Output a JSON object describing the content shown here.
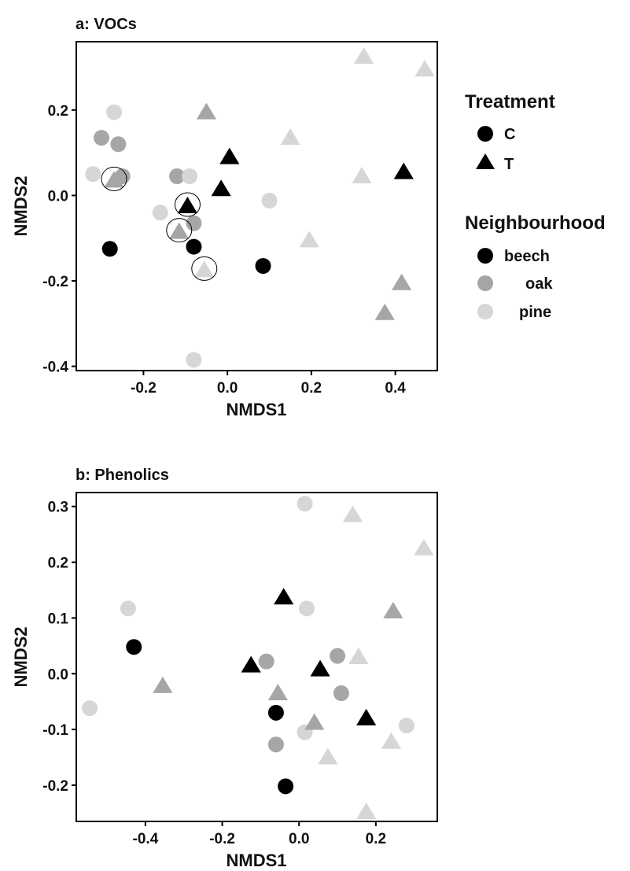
{
  "colors": {
    "beech": "#000000",
    "oak": "#a6a6a6",
    "pine": "#d6d6d6"
  },
  "legend": {
    "placement": "right of panel a",
    "treatment_title": "Treatment",
    "treatment_items": [
      {
        "label": "C",
        "shape": "circle"
      },
      {
        "label": "T",
        "shape": "triangle"
      }
    ],
    "neighbourhood_title": "Neighbourhood",
    "neighbourhood_items": [
      {
        "label": "beech",
        "color": "#000000"
      },
      {
        "label": "oak",
        "color": "#a6a6a6"
      },
      {
        "label": "pine",
        "color": "#d6d6d6"
      }
    ]
  },
  "chart_data": [
    {
      "type": "scatter",
      "title": "a: VOCs",
      "xlabel": "NMDS1",
      "ylabel": "NMDS2",
      "xlim": [
        -0.36,
        0.5
      ],
      "ylim": [
        -0.41,
        0.36
      ],
      "xticks": [
        -0.2,
        0.0,
        0.2,
        0.4
      ],
      "yticks": [
        -0.4,
        -0.2,
        0.0,
        0.2
      ],
      "xtick_labels": [
        "-0.2",
        "0.0",
        "0.2",
        "0.4"
      ],
      "ytick_labels": [
        "-0.4",
        "-0.2",
        "0.0",
        "0.2"
      ],
      "grid": false,
      "points": [
        {
          "x": -0.27,
          "y": 0.195,
          "treatment": "C",
          "neighbourhood": "pine"
        },
        {
          "x": -0.3,
          "y": 0.135,
          "treatment": "C",
          "neighbourhood": "oak"
        },
        {
          "x": -0.26,
          "y": 0.12,
          "treatment": "C",
          "neighbourhood": "oak"
        },
        {
          "x": -0.32,
          "y": 0.05,
          "treatment": "C",
          "neighbourhood": "pine"
        },
        {
          "x": -0.25,
          "y": 0.045,
          "treatment": "C",
          "neighbourhood": "oak"
        },
        {
          "x": -0.12,
          "y": 0.045,
          "treatment": "C",
          "neighbourhood": "oak"
        },
        {
          "x": -0.09,
          "y": 0.045,
          "treatment": "C",
          "neighbourhood": "pine"
        },
        {
          "x": -0.16,
          "y": -0.04,
          "treatment": "C",
          "neighbourhood": "pine"
        },
        {
          "x": -0.08,
          "y": -0.065,
          "treatment": "C",
          "neighbourhood": "oak"
        },
        {
          "x": -0.28,
          "y": -0.125,
          "treatment": "C",
          "neighbourhood": "beech"
        },
        {
          "x": -0.08,
          "y": -0.12,
          "treatment": "C",
          "neighbourhood": "beech"
        },
        {
          "x": 0.085,
          "y": -0.165,
          "treatment": "C",
          "neighbourhood": "beech"
        },
        {
          "x": 0.1,
          "y": -0.012,
          "treatment": "C",
          "neighbourhood": "pine"
        },
        {
          "x": -0.08,
          "y": -0.385,
          "treatment": "C",
          "neighbourhood": "pine"
        },
        {
          "x": -0.05,
          "y": 0.195,
          "treatment": "T",
          "neighbourhood": "oak"
        },
        {
          "x": 0.325,
          "y": 0.325,
          "treatment": "T",
          "neighbourhood": "pine"
        },
        {
          "x": 0.47,
          "y": 0.295,
          "treatment": "T",
          "neighbourhood": "pine"
        },
        {
          "x": 0.15,
          "y": 0.135,
          "treatment": "T",
          "neighbourhood": "pine"
        },
        {
          "x": 0.005,
          "y": 0.09,
          "treatment": "T",
          "neighbourhood": "beech"
        },
        {
          "x": 0.42,
          "y": 0.055,
          "treatment": "T",
          "neighbourhood": "beech"
        },
        {
          "x": 0.32,
          "y": 0.045,
          "treatment": "T",
          "neighbourhood": "pine"
        },
        {
          "x": -0.015,
          "y": 0.015,
          "treatment": "T",
          "neighbourhood": "beech"
        },
        {
          "x": -0.27,
          "y": 0.035,
          "treatment": "T",
          "neighbourhood": "oak",
          "circled": true
        },
        {
          "x": -0.095,
          "y": -0.025,
          "treatment": "T",
          "neighbourhood": "beech",
          "circled": true
        },
        {
          "x": -0.115,
          "y": -0.085,
          "treatment": "T",
          "neighbourhood": "oak",
          "circled": true
        },
        {
          "x": -0.055,
          "y": -0.175,
          "treatment": "T",
          "neighbourhood": "pine",
          "circled": true
        },
        {
          "x": 0.195,
          "y": -0.105,
          "treatment": "T",
          "neighbourhood": "pine"
        },
        {
          "x": 0.415,
          "y": -0.205,
          "treatment": "T",
          "neighbourhood": "oak"
        },
        {
          "x": 0.375,
          "y": -0.275,
          "treatment": "T",
          "neighbourhood": "oak"
        }
      ]
    },
    {
      "type": "scatter",
      "title": "b: Phenolics",
      "xlabel": "NMDS1",
      "ylabel": "NMDS2",
      "xlim": [
        -0.58,
        0.36
      ],
      "ylim": [
        -0.265,
        0.325
      ],
      "xticks": [
        -0.4,
        -0.2,
        0.0,
        0.2
      ],
      "yticks": [
        -0.2,
        -0.1,
        0.0,
        0.1,
        0.2,
        0.3
      ],
      "xtick_labels": [
        "-0.4",
        "-0.2",
        "0.0",
        "0.2"
      ],
      "ytick_labels": [
        "-0.2",
        "-0.1",
        "0.0",
        "0.1",
        "0.2",
        "0.3"
      ],
      "grid": false,
      "points": [
        {
          "x": 0.015,
          "y": 0.305,
          "treatment": "C",
          "neighbourhood": "pine"
        },
        {
          "x": -0.445,
          "y": 0.117,
          "treatment": "C",
          "neighbourhood": "pine"
        },
        {
          "x": 0.02,
          "y": 0.117,
          "treatment": "C",
          "neighbourhood": "pine"
        },
        {
          "x": -0.43,
          "y": 0.048,
          "treatment": "C",
          "neighbourhood": "beech"
        },
        {
          "x": -0.085,
          "y": 0.022,
          "treatment": "C",
          "neighbourhood": "oak"
        },
        {
          "x": 0.1,
          "y": 0.032,
          "treatment": "C",
          "neighbourhood": "oak"
        },
        {
          "x": 0.11,
          "y": -0.035,
          "treatment": "C",
          "neighbourhood": "oak"
        },
        {
          "x": -0.545,
          "y": -0.062,
          "treatment": "C",
          "neighbourhood": "pine"
        },
        {
          "x": -0.06,
          "y": -0.07,
          "treatment": "C",
          "neighbourhood": "beech"
        },
        {
          "x": 0.28,
          "y": -0.093,
          "treatment": "C",
          "neighbourhood": "pine"
        },
        {
          "x": 0.015,
          "y": -0.105,
          "treatment": "C",
          "neighbourhood": "pine"
        },
        {
          "x": -0.06,
          "y": -0.127,
          "treatment": "C",
          "neighbourhood": "oak"
        },
        {
          "x": -0.035,
          "y": -0.202,
          "treatment": "C",
          "neighbourhood": "beech"
        },
        {
          "x": 0.14,
          "y": 0.285,
          "treatment": "T",
          "neighbourhood": "pine"
        },
        {
          "x": 0.325,
          "y": 0.225,
          "treatment": "T",
          "neighbourhood": "pine"
        },
        {
          "x": -0.04,
          "y": 0.137,
          "treatment": "T",
          "neighbourhood": "beech"
        },
        {
          "x": 0.245,
          "y": 0.112,
          "treatment": "T",
          "neighbourhood": "oak"
        },
        {
          "x": 0.155,
          "y": 0.03,
          "treatment": "T",
          "neighbourhood": "pine"
        },
        {
          "x": -0.125,
          "y": 0.015,
          "treatment": "T",
          "neighbourhood": "beech"
        },
        {
          "x": 0.055,
          "y": 0.008,
          "treatment": "T",
          "neighbourhood": "beech"
        },
        {
          "x": -0.355,
          "y": -0.022,
          "treatment": "T",
          "neighbourhood": "oak"
        },
        {
          "x": -0.055,
          "y": -0.035,
          "treatment": "T",
          "neighbourhood": "oak"
        },
        {
          "x": 0.175,
          "y": -0.08,
          "treatment": "T",
          "neighbourhood": "beech"
        },
        {
          "x": 0.04,
          "y": -0.088,
          "treatment": "T",
          "neighbourhood": "oak"
        },
        {
          "x": 0.24,
          "y": -0.122,
          "treatment": "T",
          "neighbourhood": "pine"
        },
        {
          "x": 0.075,
          "y": -0.15,
          "treatment": "T",
          "neighbourhood": "pine"
        },
        {
          "x": 0.175,
          "y": -0.248,
          "treatment": "T",
          "neighbourhood": "pine"
        }
      ]
    }
  ]
}
